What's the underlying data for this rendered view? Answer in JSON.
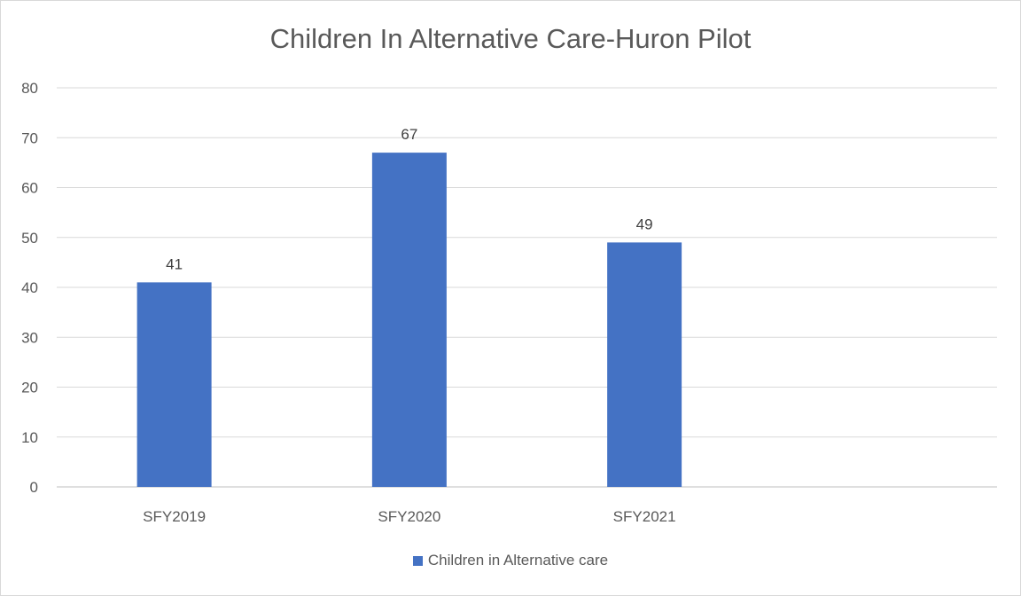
{
  "chart_data": {
    "type": "bar",
    "title": "Children In Alternative Care-Huron Pilot",
    "xlabel": "",
    "ylabel": "",
    "categories": [
      "SFY2019",
      "SFY2020",
      "SFY2021",
      ""
    ],
    "series": [
      {
        "name": "Children in Alternative care",
        "values": [
          41,
          67,
          49,
          null
        ],
        "color": "#4472c4"
      }
    ],
    "ylim": [
      0,
      80
    ],
    "yticks": [
      0,
      10,
      20,
      30,
      40,
      50,
      60,
      70,
      80
    ],
    "grid": true,
    "data_labels": true,
    "legend_position": "bottom"
  },
  "colors": {
    "bar": "#4472c4",
    "gridline": "#d9d9d9",
    "axis": "#bfbfbf",
    "text": "#595959"
  }
}
